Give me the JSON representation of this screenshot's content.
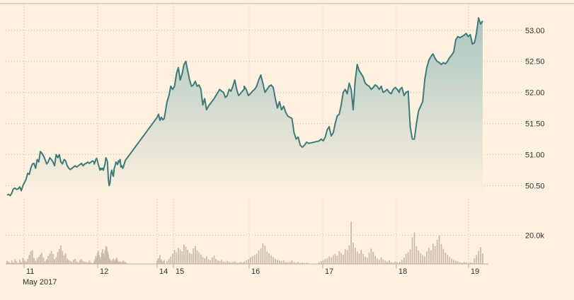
{
  "chart_data": {
    "type": "area",
    "title": "",
    "xlabel": "",
    "ylabel": "",
    "month_label": "May 2017",
    "x_ticks": [
      "11",
      "12",
      "14",
      "15",
      "16",
      "17",
      "18",
      "19"
    ],
    "price_ticks": [
      {
        "value": 50.5,
        "label": "50.50"
      },
      {
        "value": 51.0,
        "label": "51.00"
      },
      {
        "value": 51.5,
        "label": "51.50"
      },
      {
        "value": 52.0,
        "label": "52.00"
      },
      {
        "value": 52.5,
        "label": "52.50"
      },
      {
        "value": 53.0,
        "label": "53.00"
      }
    ],
    "ylim": [
      50.3,
      53.1
    ],
    "volume_ticks": [
      {
        "value": 20000,
        "label": "20.0k"
      }
    ],
    "volume_ylim": [
      0,
      36000
    ],
    "grid": true,
    "colors": {
      "line": "#3f7a7a",
      "area_top": "#a9c6c0",
      "area_bottom": "#fff1e0",
      "volume": "#cdbaa8",
      "background": "#fff1e0"
    },
    "sessions": [
      {
        "day": "11",
        "prices": [
          50.35,
          50.36,
          50.34,
          50.38,
          50.45,
          50.46,
          50.44,
          50.45,
          50.48,
          50.42,
          50.5,
          50.55,
          50.6,
          50.7,
          50.68,
          50.78,
          50.85,
          50.86,
          50.78,
          50.92,
          50.88,
          51.05,
          51.02,
          50.98,
          50.92,
          50.85,
          50.88,
          50.95,
          50.92,
          50.88,
          50.82,
          51.0,
          50.95,
          51.0,
          50.88,
          50.85,
          50.92,
          50.9,
          50.82,
          50.78,
          50.76,
          50.78,
          50.8,
          50.82,
          50.8,
          50.82,
          50.84,
          50.86,
          50.82,
          50.85,
          50.86,
          50.88,
          50.86,
          50.88,
          50.9,
          50.88
        ],
        "volumes": [
          2100,
          1500,
          800,
          2400,
          1100,
          3200,
          1900,
          700,
          2800,
          1300,
          4200,
          2500,
          1600,
          3600,
          6200,
          8800,
          9500,
          4100,
          2200,
          3900,
          5100,
          6500,
          7800,
          4300,
          2000,
          3100,
          5500,
          7200,
          9000,
          6800,
          3400,
          4800,
          8200,
          10500,
          12800,
          9100,
          6000,
          7500,
          3800,
          2600,
          2100,
          1500,
          2900,
          3500,
          1800,
          1200,
          2700,
          3300,
          2100,
          1600,
          1400,
          1000,
          2300,
          1100,
          600,
          1200
        ]
      },
      {
        "day": "12",
        "prices": [
          50.85,
          50.88,
          50.92,
          50.94,
          50.9,
          50.84,
          50.8,
          50.75,
          50.78,
          50.76,
          50.78,
          50.75,
          50.8,
          50.85,
          50.95,
          50.92,
          50.88,
          50.6,
          50.5,
          50.55,
          50.7,
          50.75,
          50.68,
          50.65,
          50.78,
          50.82,
          50.88,
          50.86,
          50.84,
          50.9,
          50.88,
          50.92,
          50.8,
          50.82,
          50.78,
          50.8,
          50.85,
          50.9,
          50.92
        ],
        "volumes": [
          1800,
          3200,
          5600,
          4100,
          7800,
          9200,
          6100,
          3300,
          4900,
          8100,
          10200,
          7300,
          5800,
          9600,
          12500,
          11900,
          8800,
          6600,
          4200,
          3000,
          2200,
          1700,
          2900,
          3800,
          1400,
          2600,
          3500,
          4400,
          2700,
          1500,
          1100,
          2000,
          900,
          1300,
          1700,
          2400,
          1000,
          1500,
          800
        ]
      },
      {
        "day": "14",
        "prices": [
          51.6,
          51.65,
          51.55,
          51.6,
          51.56,
          51.58
        ],
        "volumes": [
          2500,
          4000,
          6200,
          3100,
          1800,
          2700
        ]
      },
      {
        "day": "15",
        "prices": [
          51.85,
          51.95,
          52.1,
          52.05,
          52.1,
          52.3,
          52.4,
          52.2,
          52.3,
          52.45,
          52.5,
          52.35,
          52.2,
          52.1,
          52.12,
          52.18,
          52.1,
          52.12,
          52.05,
          51.8,
          51.9,
          51.72,
          51.78,
          51.82,
          51.86,
          51.9,
          51.95,
          52.0,
          52.05,
          52.02,
          52.0,
          51.92,
          51.95,
          52.05,
          52.02,
          52.1,
          52.2,
          52.05,
          51.95,
          51.98,
          52.02,
          52.05
        ],
        "volumes": [
          2000,
          3500,
          5100,
          7200,
          9600,
          8300,
          11200,
          10100,
          8800,
          13500,
          12100,
          9900,
          7600,
          6900,
          10800,
          12400,
          9400,
          8100,
          6500,
          4800,
          3900,
          5200,
          3100,
          2600,
          4400,
          5700,
          3400,
          2500,
          1900,
          2800,
          1600,
          1200,
          2100,
          1500,
          900,
          1300,
          1800,
          1100,
          700,
          1400,
          1000,
          600
        ]
      },
      {
        "day": "16",
        "prices": [
          52.1,
          52.05,
          51.95,
          51.98,
          52.02,
          52.05,
          52.1,
          52.2,
          52.28,
          52.15,
          52.0,
          52.05,
          52.1,
          52.12,
          52.08,
          51.9,
          51.75,
          51.85,
          51.72,
          51.78,
          51.68,
          51.62,
          51.6,
          51.58,
          51.35,
          51.25,
          51.28,
          51.15,
          51.12,
          51.15,
          51.2,
          51.18
        ],
        "volumes": [
          1500,
          2300,
          3100,
          4600,
          5400,
          6200,
          7100,
          9300,
          10800,
          14200,
          12600,
          8700,
          7400,
          6100,
          4900,
          3600,
          2800,
          2200,
          1900,
          2500,
          1400,
          1100,
          1700,
          2600,
          1300,
          900,
          1500,
          700,
          1100,
          600,
          800,
          500
        ]
      },
      {
        "day": "17",
        "prices": [
          51.22,
          51.25,
          51.22,
          51.28,
          51.4,
          51.45,
          51.3,
          51.35,
          51.5,
          51.62,
          51.65,
          51.8,
          52.0,
          52.05,
          51.98,
          52.15,
          52.05,
          51.72,
          52.2,
          52.45,
          52.35,
          52.3,
          52.25,
          52.15,
          52.12,
          52.1,
          52.05,
          52.08,
          52.12,
          52.1,
          52.05,
          52.1,
          52.0,
          52.02,
          52.05,
          52.0,
          51.98,
          52.05,
          52.08,
          52.05,
          52.0
        ],
        "volumes": [
          1200,
          1900,
          2600,
          3400,
          4100,
          5200,
          4600,
          6300,
          7100,
          5800,
          8900,
          7600,
          6400,
          10200,
          9700,
          12900,
          29500,
          14800,
          11300,
          8600,
          7200,
          9800,
          6900,
          5100,
          4300,
          7700,
          10600,
          8400,
          5600,
          3800,
          2900,
          4700,
          3200,
          2100,
          1600,
          2500,
          1300,
          900,
          1800,
          1100,
          700
        ]
      },
      {
        "day": "18",
        "prices": [
          52.05,
          52.08,
          51.95,
          52.0,
          52.02,
          51.45,
          51.25,
          51.25,
          51.5,
          51.7,
          51.78,
          51.85,
          52.2,
          52.4,
          52.52,
          52.58,
          52.62,
          52.55,
          52.5,
          52.48,
          52.45,
          52.48,
          52.46,
          52.5,
          52.56,
          52.6,
          52.65,
          52.85,
          52.9,
          52.88,
          52.9,
          52.92,
          52.95,
          52.9,
          52.93,
          52.78,
          52.8,
          52.95,
          53.2,
          53.1,
          53.15
        ],
        "volumes": [
          1400,
          2800,
          4500,
          6900,
          8200,
          10100,
          18500,
          22000,
          12300,
          9400,
          7500,
          6100,
          5300,
          8700,
          11200,
          9600,
          14100,
          12400,
          16700,
          20100,
          13800,
          10500,
          7900,
          6300,
          4800,
          3600,
          2700,
          2100,
          1700,
          1300,
          900,
          1500,
          1000,
          700,
          1200,
          800,
          3900,
          6200,
          9000,
          11800,
          7400
        ]
      }
    ]
  }
}
